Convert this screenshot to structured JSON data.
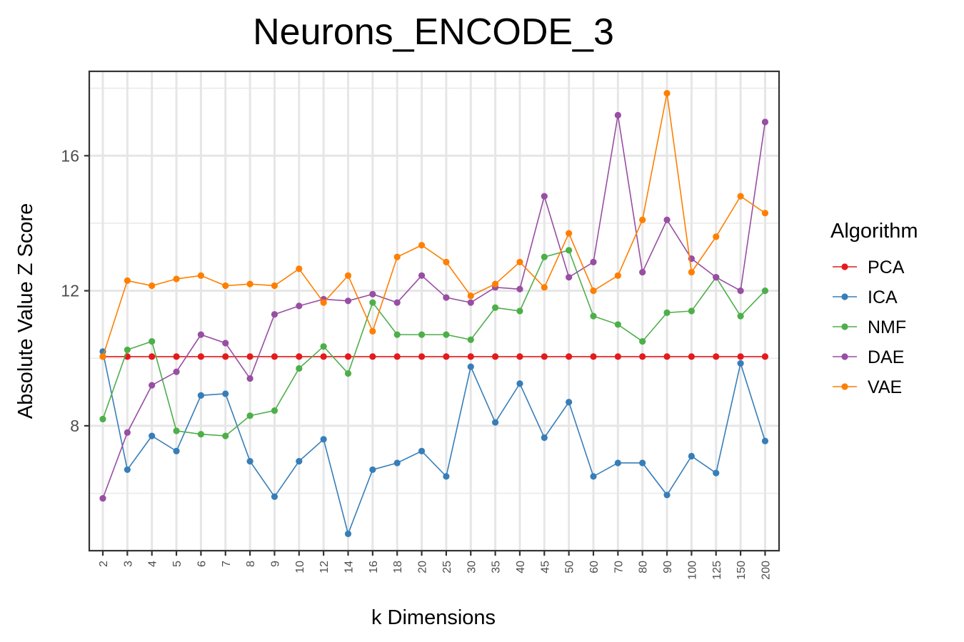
{
  "chart_data": {
    "type": "line",
    "title": "Neurons_ENCODE_3",
    "xlabel": "k Dimensions",
    "ylabel": "Absolute Value Z Score",
    "categories": [
      "2",
      "3",
      "4",
      "5",
      "6",
      "7",
      "8",
      "9",
      "10",
      "12",
      "14",
      "16",
      "18",
      "20",
      "25",
      "30",
      "35",
      "40",
      "45",
      "50",
      "60",
      "70",
      "80",
      "90",
      "100",
      "125",
      "150",
      "200"
    ],
    "yticks": [
      8,
      12,
      16
    ],
    "ylim": [
      4.3,
      18.5
    ],
    "grid": true,
    "legend": {
      "title": "Algorithm",
      "placement": "right"
    },
    "series": [
      {
        "name": "PCA",
        "color": "#E41A1C",
        "values": [
          10.05,
          10.05,
          10.05,
          10.05,
          10.05,
          10.05,
          10.05,
          10.05,
          10.05,
          10.05,
          10.05,
          10.05,
          10.05,
          10.05,
          10.05,
          10.05,
          10.05,
          10.05,
          10.05,
          10.05,
          10.05,
          10.05,
          10.05,
          10.05,
          10.05,
          10.05,
          10.05,
          10.05
        ]
      },
      {
        "name": "ICA",
        "color": "#377EB8",
        "values": [
          10.2,
          6.7,
          7.7,
          7.25,
          8.9,
          8.95,
          6.95,
          5.9,
          6.95,
          7.6,
          4.8,
          6.7,
          6.9,
          7.25,
          6.5,
          9.75,
          8.1,
          9.25,
          7.65,
          8.7,
          6.5,
          6.9,
          6.9,
          5.95,
          7.1,
          6.6,
          9.85,
          7.55
        ]
      },
      {
        "name": "NMF",
        "color": "#4DAF4A",
        "values": [
          8.2,
          10.25,
          10.5,
          7.85,
          7.75,
          7.7,
          8.3,
          8.45,
          9.7,
          10.35,
          9.55,
          11.65,
          10.7,
          10.7,
          10.7,
          10.55,
          11.5,
          11.4,
          13.0,
          13.2,
          11.25,
          11.0,
          10.5,
          11.35,
          11.4,
          12.4,
          11.25,
          12.0
        ]
      },
      {
        "name": "DAE",
        "color": "#984EA3",
        "values": [
          5.85,
          7.8,
          9.2,
          9.6,
          10.7,
          10.45,
          9.4,
          11.3,
          11.55,
          11.75,
          11.7,
          11.9,
          11.65,
          12.45,
          11.8,
          11.65,
          12.1,
          12.05,
          14.8,
          12.4,
          12.85,
          17.2,
          12.55,
          14.1,
          12.95,
          12.4,
          12.0,
          17.0
        ]
      },
      {
        "name": "VAE",
        "color": "#FF7F00",
        "values": [
          10.05,
          12.3,
          12.15,
          12.35,
          12.45,
          12.15,
          12.2,
          12.15,
          12.65,
          11.65,
          12.45,
          10.8,
          13.0,
          13.35,
          12.85,
          11.85,
          12.2,
          12.85,
          12.1,
          13.7,
          12.0,
          12.45,
          14.1,
          17.85,
          12.55,
          13.6,
          14.8,
          14.3
        ]
      }
    ]
  }
}
